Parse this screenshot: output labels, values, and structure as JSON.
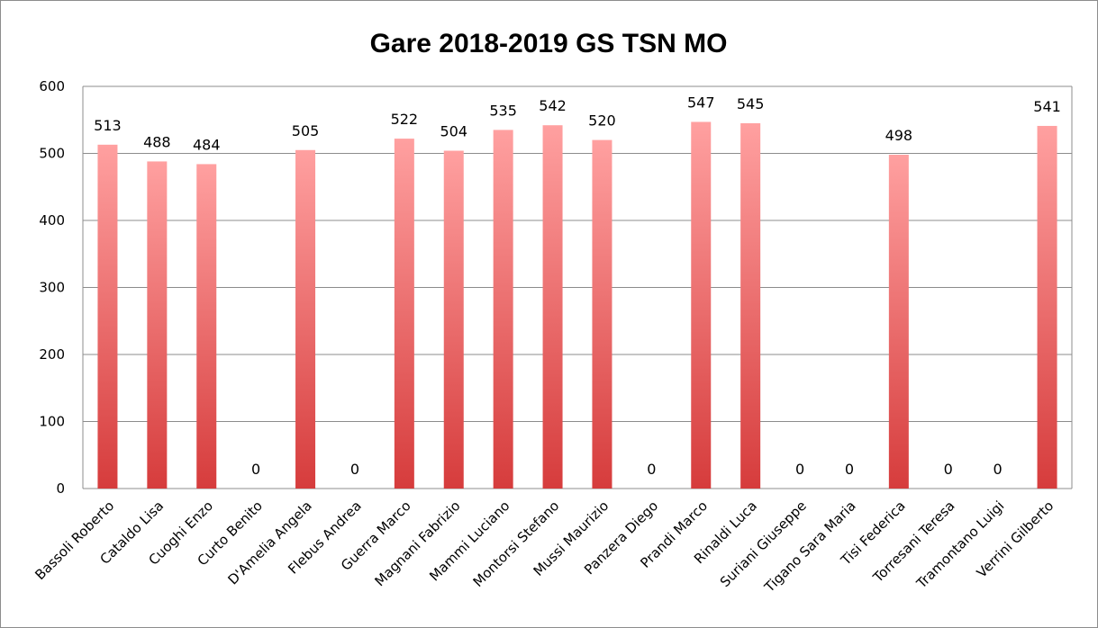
{
  "chart_data": {
    "type": "bar",
    "title": "Gare 2018-2019 GS TSN MO",
    "xlabel": "",
    "ylabel": "",
    "ylim": [
      0,
      600
    ],
    "yticks": [
      "0",
      "100",
      "200",
      "300",
      "400",
      "500",
      "600"
    ],
    "grid": true,
    "legend": "none",
    "bar_color_top": "#ffa0a0",
    "bar_color_bottom": "#d63c3c",
    "categories": [
      "Bassoli Roberto",
      "Cataldo Lisa",
      "Cuoghi Enzo",
      "Curto Benito",
      "D'Amelia Angela",
      "Flebus Andrea",
      "Guerra Marco",
      "Magnani Fabrizio",
      "Mammi Luciano",
      "Montorsi Stefano",
      "Mussi Maurizio",
      "Panzera Diego",
      "Prandi Marco",
      "Rinaldi Luca",
      "Suriani Giuseppe",
      "Tigano Sara Maria",
      "Tisi Federica",
      "Torresani Teresa",
      "Tramontano Luigi",
      "Verrini Gilberto"
    ],
    "values": [
      513,
      488,
      484,
      0,
      505,
      0,
      522,
      504,
      535,
      542,
      520,
      0,
      547,
      545,
      0,
      0,
      498,
      0,
      0,
      541
    ]
  }
}
